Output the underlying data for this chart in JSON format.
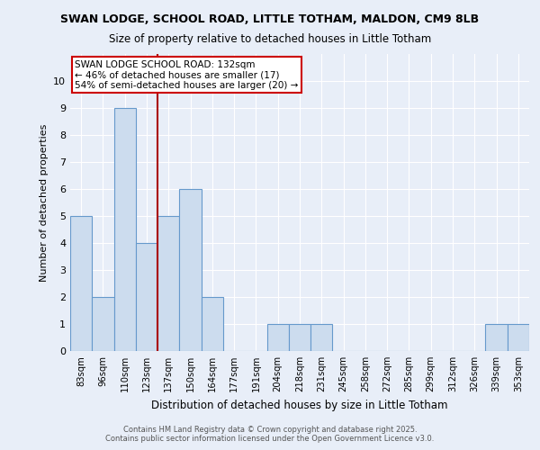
{
  "title1": "SWAN LODGE, SCHOOL ROAD, LITTLE TOTHAM, MALDON, CM9 8LB",
  "title2": "Size of property relative to detached houses in Little Totham",
  "xlabel": "Distribution of detached houses by size in Little Totham",
  "ylabel": "Number of detached properties",
  "categories": [
    "83sqm",
    "96sqm",
    "110sqm",
    "123sqm",
    "137sqm",
    "150sqm",
    "164sqm",
    "177sqm",
    "191sqm",
    "204sqm",
    "218sqm",
    "231sqm",
    "245sqm",
    "258sqm",
    "272sqm",
    "285sqm",
    "299sqm",
    "312sqm",
    "326sqm",
    "339sqm",
    "353sqm"
  ],
  "values": [
    5,
    2,
    9,
    4,
    5,
    6,
    2,
    0,
    0,
    1,
    1,
    1,
    0,
    0,
    0,
    0,
    0,
    0,
    0,
    1,
    1
  ],
  "bar_color": "#ccdcee",
  "bar_edge_color": "#6699cc",
  "red_line_index": 3.5,
  "ylim": [
    0,
    11
  ],
  "yticks": [
    0,
    1,
    2,
    3,
    4,
    5,
    6,
    7,
    8,
    9,
    10,
    11
  ],
  "annotation_text": "SWAN LODGE SCHOOL ROAD: 132sqm\n← 46% of detached houses are smaller (17)\n54% of semi-detached houses are larger (20) →",
  "annotation_box_color": "#ffffff",
  "annotation_box_edge": "#cc0000",
  "footer1": "Contains HM Land Registry data © Crown copyright and database right 2025.",
  "footer2": "Contains public sector information licensed under the Open Government Licence v3.0.",
  "background_color": "#e8eef8",
  "grid_color": "#ffffff",
  "plot_bg_color": "#e8eef8"
}
